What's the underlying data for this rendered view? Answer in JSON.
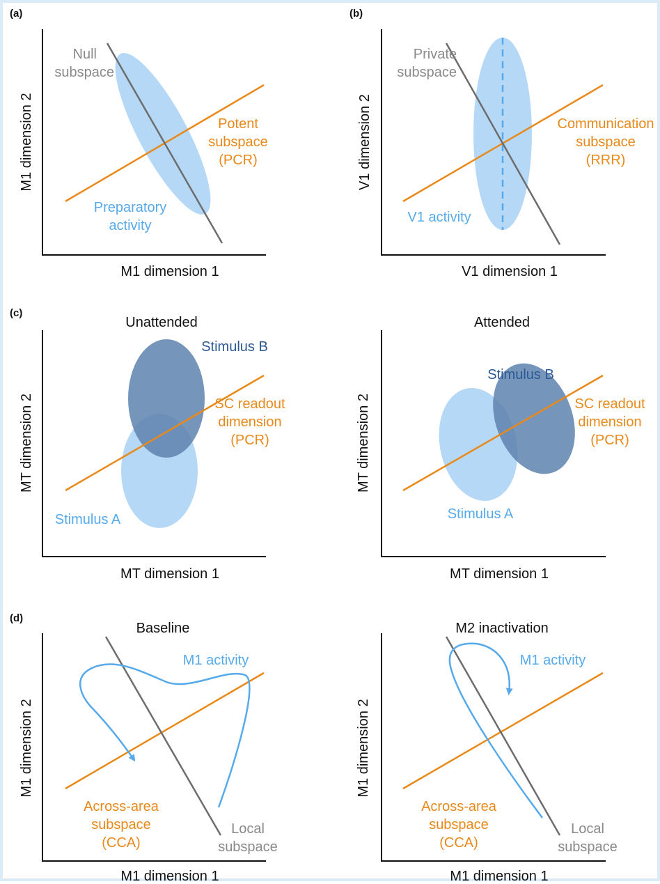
{
  "colors": {
    "orange": "#E8891A",
    "gray": "#6d6d6d",
    "gray_text": "#8a8a8a",
    "light_blue": "#56AAEC",
    "fill_light": "#B4D8F6",
    "fill_dark": "#5E82AE",
    "dark_blue_text": "#2C5A94",
    "axis": "#111111"
  },
  "panel_a": {
    "letter": "(a)",
    "xlabel": "M1 dimension 1",
    "ylabel": "M1 dimension 2",
    "null_l1": "Null",
    "null_l2": "subspace",
    "potent_l1": "Potent",
    "potent_l2": "subspace",
    "potent_l3": "(PCR)",
    "prep_l1": "Preparatory",
    "prep_l2": "activity"
  },
  "panel_b": {
    "letter": "(b)",
    "xlabel": "V1 dimension 1",
    "ylabel": "V1 dimension 2",
    "private_l1": "Private",
    "private_l2": "subspace",
    "comm_l1": "Communication",
    "comm_l2": "subspace",
    "comm_l3": "(RRR)",
    "v1_activity": "V1 activity"
  },
  "panel_c": {
    "letter": "(c)",
    "left": {
      "title": "Unattended",
      "xlabel": "MT dimension 1",
      "ylabel": "MT dimension 2",
      "stim_b": "Stimulus B",
      "stim_a": "Stimulus A",
      "sc_l1": "SC readout",
      "sc_l2": "dimension",
      "sc_l3": "(PCR)"
    },
    "right": {
      "title": "Attended",
      "xlabel": "MT dimension 1",
      "ylabel": "MT dimension 2",
      "stim_b": "Stimulus B",
      "stim_a": "Stimulus A",
      "sc_l1": "SC readout",
      "sc_l2": "dimension",
      "sc_l3": "(PCR)"
    }
  },
  "panel_d": {
    "letter": "(d)",
    "left": {
      "title": "Baseline",
      "xlabel": "M1 dimension 1",
      "ylabel": "M1 dimension 2",
      "m1_activity": "M1 activity",
      "across_l1": "Across-area",
      "across_l2": "subspace",
      "across_l3": "(CCA)",
      "local_l1": "Local",
      "local_l2": "subspace"
    },
    "right": {
      "title": "M2 inactivation",
      "xlabel": "M1 dimension 1",
      "ylabel": "M1 dimension 2",
      "m1_activity": "M1 activity",
      "across_l1": "Across-area",
      "across_l2": "subspace",
      "across_l3": "(CCA)",
      "local_l1": "Local",
      "local_l2": "subspace"
    }
  }
}
